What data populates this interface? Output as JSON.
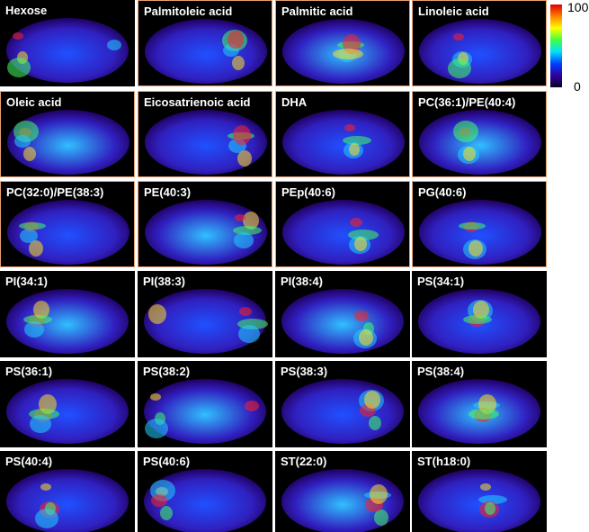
{
  "panels": [
    {
      "label": "Hexose"
    },
    {
      "label": "Palmitoleic acid"
    },
    {
      "label": "Palmitic acid"
    },
    {
      "label": "Linoleic acid"
    },
    {
      "label": "Oleic acid"
    },
    {
      "label": "Eicosatrienoic acid"
    },
    {
      "label": "DHA"
    },
    {
      "label": "PC(36:1)/PE(40:4)"
    },
    {
      "label": "PC(32:0)/PE(38:3)"
    },
    {
      "label": "PE(40:3)"
    },
    {
      "label": "PEp(40:6)"
    },
    {
      "label": "PG(40:6)"
    },
    {
      "label": "PI(34:1)"
    },
    {
      "label": "PI(38:3)"
    },
    {
      "label": "PI(38:4)"
    },
    {
      "label": "PS(34:1)"
    },
    {
      "label": "PS(36:1)"
    },
    {
      "label": "PS(38:2)"
    },
    {
      "label": "PS(38:3)"
    },
    {
      "label": "PS(38:4)"
    },
    {
      "label": "PS(40:4)"
    },
    {
      "label": "PS(40:6)"
    },
    {
      "label": "ST(22:0)"
    },
    {
      "label": "ST(h18:0)"
    }
  ],
  "colorbar": {
    "max_label": "100",
    "min_label": "0"
  }
}
